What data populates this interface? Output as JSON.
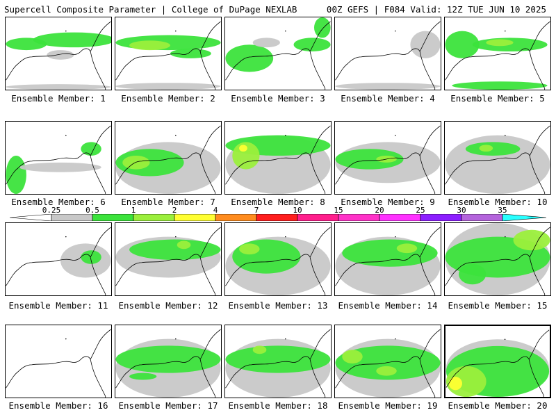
{
  "header": {
    "left_title": "Supercell Composite Parameter | College of DuPage NEXLAB",
    "right_title": "00Z GEFS | F084 Valid: 12Z TUE JUN 10 2025"
  },
  "colors": {
    "cat1": "#c8c8c8",
    "cat2": "#3ce33c",
    "cat3": "#9bef3c",
    "cat4": "#ffff32",
    "cat5": "#ff8c1e",
    "cat6": "#ff1e1e",
    "cat7": "#ff1e8c",
    "cat8": "#ff32c8",
    "cat9": "#ff32ff",
    "cat10": "#8c1eff",
    "cat11": "#b464dc",
    "cat12": "#28ffff"
  },
  "colorbar": {
    "labels": [
      "0.25",
      "0.5",
      "1",
      "2",
      "4",
      "7",
      "10",
      "15",
      "20",
      "25",
      "30",
      "35"
    ]
  },
  "members": [
    {
      "label": "Ensemble Member: 1"
    },
    {
      "label": "Ensemble Member: 2"
    },
    {
      "label": "Ensemble Member: 3"
    },
    {
      "label": "Ensemble Member: 4"
    },
    {
      "label": "Ensemble Member: 5"
    },
    {
      "label": "Ensemble Member: 6"
    },
    {
      "label": "Ensemble Member: 7"
    },
    {
      "label": "Ensemble Member: 8"
    },
    {
      "label": "Ensemble Member: 9"
    },
    {
      "label": "Ensemble Member: 10"
    },
    {
      "label": "Ensemble Member: 11"
    },
    {
      "label": "Ensemble Member: 12"
    },
    {
      "label": "Ensemble Member: 13"
    },
    {
      "label": "Ensemble Member: 14"
    },
    {
      "label": "Ensemble Member: 15"
    },
    {
      "label": "Ensemble Member: 16"
    },
    {
      "label": "Ensemble Member: 17"
    },
    {
      "label": "Ensemble Member: 18"
    },
    {
      "label": "Ensemble Member: 19"
    },
    {
      "label": "Ensemble Member: 20"
    }
  ],
  "selected_member": "Ensemble Member: 20"
}
